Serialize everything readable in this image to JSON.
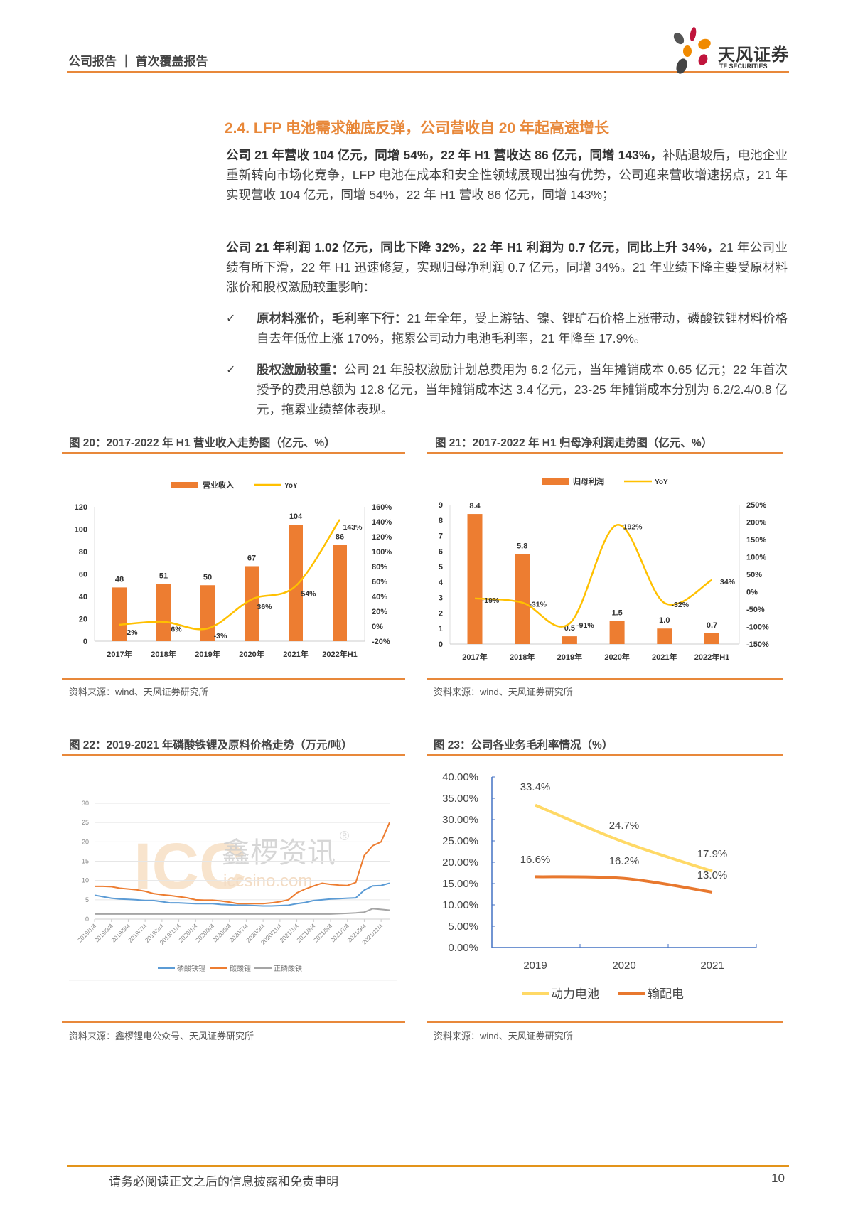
{
  "header": {
    "title": "公司报告 ｜ 首次覆盖报告",
    "logo_cn": "天风证券",
    "logo_en": "TF SECURITIES"
  },
  "section_title": "2.4. LFP 电池需求触底反弹，公司营收自 20 年起高速增长",
  "paragraphs": [
    {
      "bold": "公司 21 年营收 104 亿元，同增 54%，22 年 H1 营收达 86 亿元，同增 143%，",
      "text": "补贴退坡后，电池企业重新转向市场化竞争，LFP 电池在成本和安全性领域展现出独有优势，公司迎来营收增速拐点，21 年实现营收 104 亿元，同增 54%，22 年 H1 营收 86 亿元，同增 143%；"
    },
    {
      "bold": "公司 21 年利润 1.02 亿元，同比下降 32%，22 年 H1 利润为 0.7 亿元，同比上升 34%，",
      "text": "21 年公司业绩有所下滑，22 年 H1 迅速修复，实现归母净利润 0.7 亿元，同增 34%。21 年业绩下降主要受原材料涨价和股权激励较重影响："
    }
  ],
  "bullets": [
    {
      "mark": "✓",
      "bold": "原材料涨价，毛利率下行：",
      "text": "21 年全年，受上游钴、镍、锂矿石价格上涨带动，磷酸铁锂材料价格自去年低位上涨 170%，拖累公司动力电池毛利率，21 年降至 17.9%。"
    },
    {
      "mark": "✓",
      "bold": "股权激励较重：",
      "text": "公司 21 年股权激励计划总费用为 6.2 亿元，当年摊销成本 0.65 亿元；22 年首次授予的费用总额为 12.8 亿元，当年摊销成本达 3.4 亿元，23-25 年摊销成本分别为 6.2/2.4/0.8 亿元，拖累业绩整体表现。"
    }
  ],
  "figures": [
    {
      "title": "图 20：2017-2022 年 H1 营业收入走势图（亿元、%）",
      "source": "资料来源：wind、天风证券研究所"
    },
    {
      "title": "图 21：2017-2022 年 H1 归母净利润走势图（亿元、%）",
      "source": "资料来源：wind、天风证券研究所"
    },
    {
      "title": "图 22：2019-2021 年磷酸铁锂及原料价格走势（万元/吨）",
      "source": "资料来源：鑫椤锂电公众号、天风证券研究所"
    },
    {
      "title": "图 23：公司各业务毛利率情况（%）",
      "source": "资料来源：wind、天风证券研究所"
    }
  ],
  "chart_data": [
    {
      "type": "bar",
      "categories": [
        "2017年",
        "2018年",
        "2019年",
        "2020年",
        "2021年",
        "2022年H1"
      ],
      "series": [
        {
          "name": "营业收入",
          "values": [
            48,
            51,
            50,
            67,
            104,
            86
          ],
          "labels": [
            "48",
            "51",
            "50",
            "67",
            "104",
            "86"
          ],
          "color": "#ED7D31"
        },
        {
          "name": "YoY",
          "type": "line",
          "values": [
            2,
            6,
            -3,
            36,
            54,
            143
          ],
          "labels": [
            "2%",
            "6%",
            "-3%",
            "36%",
            "54%",
            "143%"
          ],
          "color": "#FFC000"
        }
      ],
      "ylim": [
        0,
        120
      ],
      "yticks": [
        "0",
        "20",
        "40",
        "60",
        "80",
        "100",
        "120"
      ],
      "y2lim": [
        -20,
        160
      ],
      "y2ticks": [
        "-20%",
        "0%",
        "20%",
        "40%",
        "60%",
        "80%",
        "100%",
        "120%",
        "140%",
        "160%"
      ],
      "legend": "top"
    },
    {
      "type": "bar",
      "categories": [
        "2017年",
        "2018年",
        "2019年",
        "2020年",
        "2021年",
        "2022年H1"
      ],
      "series": [
        {
          "name": "归母利润",
          "values": [
            8.4,
            5.8,
            0.5,
            1.5,
            1.0,
            0.7
          ],
          "labels": [
            "8.4",
            "5.8",
            "0.5",
            "1.5",
            "1.0",
            "0.7"
          ],
          "color": "#ED7D31"
        },
        {
          "name": "YoY",
          "type": "line",
          "values": [
            -19,
            -31,
            -91,
            192,
            -32,
            34
          ],
          "labels": [
            "-19%",
            "-31%",
            "-91%",
            "192%",
            "-32%",
            "34%"
          ],
          "color": "#FFC000"
        }
      ],
      "ylim": [
        0,
        9
      ],
      "yticks": [
        "0",
        "1",
        "2",
        "3",
        "4",
        "5",
        "6",
        "7",
        "8",
        "9"
      ],
      "y2lim": [
        -150,
        250
      ],
      "y2ticks": [
        "-150%",
        "-100%",
        "-50%",
        "0%",
        "50%",
        "100%",
        "150%",
        "200%",
        "250%"
      ],
      "legend": "top"
    },
    {
      "type": "line",
      "ylim": [
        0,
        30
      ],
      "yticks": [
        "0",
        "5",
        "10",
        "15",
        "20",
        "25",
        "30"
      ],
      "xticks": [
        "2019/1/4",
        "2019/3/4",
        "2019/5/4",
        "2019/7/4",
        "2019/9/4",
        "2019/11/4",
        "2020/1/4",
        "2020/3/4",
        "2020/5/4",
        "2020/7/4",
        "2020/9/4",
        "2020/11/4",
        "2021/1/4",
        "2021/3/4",
        "2021/5/4",
        "2021/7/4",
        "2021/9/4",
        "2021/11/4"
      ],
      "x_months_from": "2019-01",
      "x_months_to": "2021-12",
      "series": [
        {
          "name": "磷酸铁锂",
          "color": "#5B9BD5",
          "values": [
            6.2,
            5.8,
            5.4,
            5.2,
            5.1,
            5.0,
            4.8,
            4.8,
            4.5,
            4.2,
            4.2,
            4.1,
            4.0,
            4.0,
            4.0,
            3.8,
            3.7,
            3.6,
            3.6,
            3.5,
            3.4,
            3.4,
            3.5,
            3.6,
            4.0,
            4.3,
            4.8,
            5.0,
            5.2,
            5.3,
            5.4,
            5.5,
            7.5,
            8.6,
            8.7,
            9.3
          ]
        },
        {
          "name": "碳酸锂",
          "color": "#ED7D31",
          "values": [
            8.5,
            8.5,
            8.4,
            8.0,
            7.8,
            7.6,
            7.2,
            6.6,
            6.3,
            6.1,
            5.8,
            5.5,
            5.0,
            4.9,
            4.9,
            4.7,
            4.4,
            4.0,
            4.0,
            4.0,
            4.0,
            4.2,
            4.5,
            5.0,
            6.8,
            7.8,
            8.6,
            9.3,
            9.0,
            8.8,
            8.7,
            9.5,
            16.5,
            19.0,
            20.0,
            25.0
          ]
        },
        {
          "name": "正磷酸铁",
          "color": "#A5A5A5",
          "values": [
            1.3,
            1.3,
            1.3,
            1.3,
            1.3,
            1.3,
            1.3,
            1.3,
            1.3,
            1.3,
            1.3,
            1.3,
            1.3,
            1.3,
            1.3,
            1.3,
            1.3,
            1.3,
            1.3,
            1.3,
            1.3,
            1.3,
            1.3,
            1.3,
            1.3,
            1.3,
            1.3,
            1.3,
            1.3,
            1.4,
            1.5,
            1.6,
            1.8,
            2.7,
            2.5,
            2.3
          ]
        }
      ],
      "watermark": {
        "logo": "ICC",
        "cn": "鑫椤资讯",
        "url": "iccsino.com",
        "reg": "®"
      },
      "legend": "bottom",
      "grid": true
    },
    {
      "type": "line",
      "categories": [
        "2019",
        "2020",
        "2021"
      ],
      "ylim": [
        0,
        40
      ],
      "yticks": [
        "0.00%",
        "5.00%",
        "10.00%",
        "15.00%",
        "20.00%",
        "25.00%",
        "30.00%",
        "35.00%",
        "40.00%"
      ],
      "series": [
        {
          "name": "动力电池",
          "color": "#FFD966",
          "values": [
            33.4,
            24.7,
            17.9
          ],
          "labels": [
            "33.4%",
            "24.7%",
            "17.9%"
          ]
        },
        {
          "name": "输配电",
          "color": "#E8782E",
          "values": [
            16.6,
            16.2,
            13.0
          ],
          "labels": [
            "16.6%",
            "16.2%",
            "13.0%"
          ]
        }
      ],
      "legend": "bottom"
    }
  ],
  "footer": {
    "disclaimer": "请务必阅读正文之后的信息披露和免责申明",
    "page": "10"
  }
}
